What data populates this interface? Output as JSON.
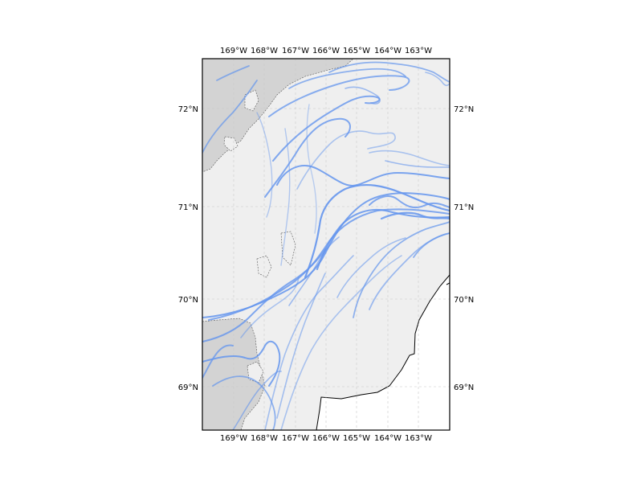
{
  "map": {
    "lon_labels_top": [
      "169°W",
      "168°W",
      "167°W",
      "166°W",
      "165°W",
      "164°W",
      "163°W"
    ],
    "lon_labels_bottom": [
      "169°W",
      "168°W",
      "167°W",
      "166°W",
      "165°W",
      "164°W",
      "163°W"
    ],
    "lat_labels_left": [
      "72°N",
      "71°N",
      "70°N",
      "69°N"
    ],
    "lat_labels_right": [
      "72°N",
      "71°N",
      "70°N",
      "69°N"
    ],
    "colors": {
      "ocean": "#efefef",
      "land": "#d3d3d3",
      "track": "#6495ed",
      "grid": "#c8c8c8",
      "frame": "#000000"
    },
    "icons": [
      "drift-track-lines",
      "coastline"
    ]
  }
}
